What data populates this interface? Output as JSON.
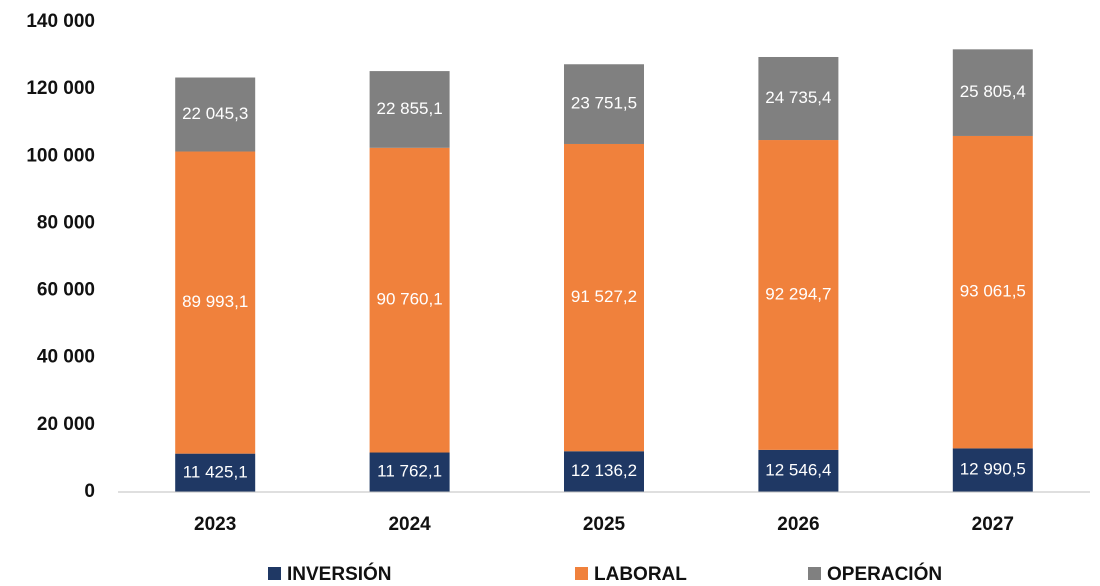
{
  "chart_data": {
    "type": "stacked_bar",
    "categories": [
      "2023",
      "2024",
      "2025",
      "2026",
      "2027"
    ],
    "series": [
      {
        "name": "INVERSIÓN",
        "color": "#1f3864",
        "values": [
          11425.1,
          11762.1,
          12136.2,
          12546.4,
          12990.5
        ],
        "value_labels": [
          "11 425,1",
          "11 762,1",
          "12 136,2",
          "12 546,4",
          "12 990,5"
        ]
      },
      {
        "name": "LABORAL",
        "color": "#f0813c",
        "values": [
          89993.1,
          90760.1,
          91527.2,
          92294.7,
          93061.5
        ],
        "value_labels": [
          "89 993,1",
          "90 760,1",
          "91 527,2",
          "92 294,7",
          "93 061,5"
        ]
      },
      {
        "name": "OPERACIÓN",
        "color": "#808080",
        "values": [
          22045.3,
          22855.1,
          23751.5,
          24735.4,
          25805.4
        ],
        "value_labels": [
          "22 045,3",
          "22 855,1",
          "23 751,5",
          "24 735,4",
          "25 805,4"
        ]
      }
    ],
    "ylim": [
      0,
      140000
    ],
    "yticks": [
      0,
      {
        "value": 20000,
        "label": "20 000"
      },
      {
        "value": 40000,
        "label": "40 000"
      },
      {
        "value": 60000,
        "label": "60 000"
      },
      {
        "value": 80000,
        "label": "80 000"
      },
      {
        "value": 100000,
        "label": "100 000"
      },
      {
        "value": 120000,
        "label": "120 000"
      },
      {
        "value": 140000,
        "label": "140 000"
      }
    ],
    "legend": "bottom",
    "grid": false
  }
}
